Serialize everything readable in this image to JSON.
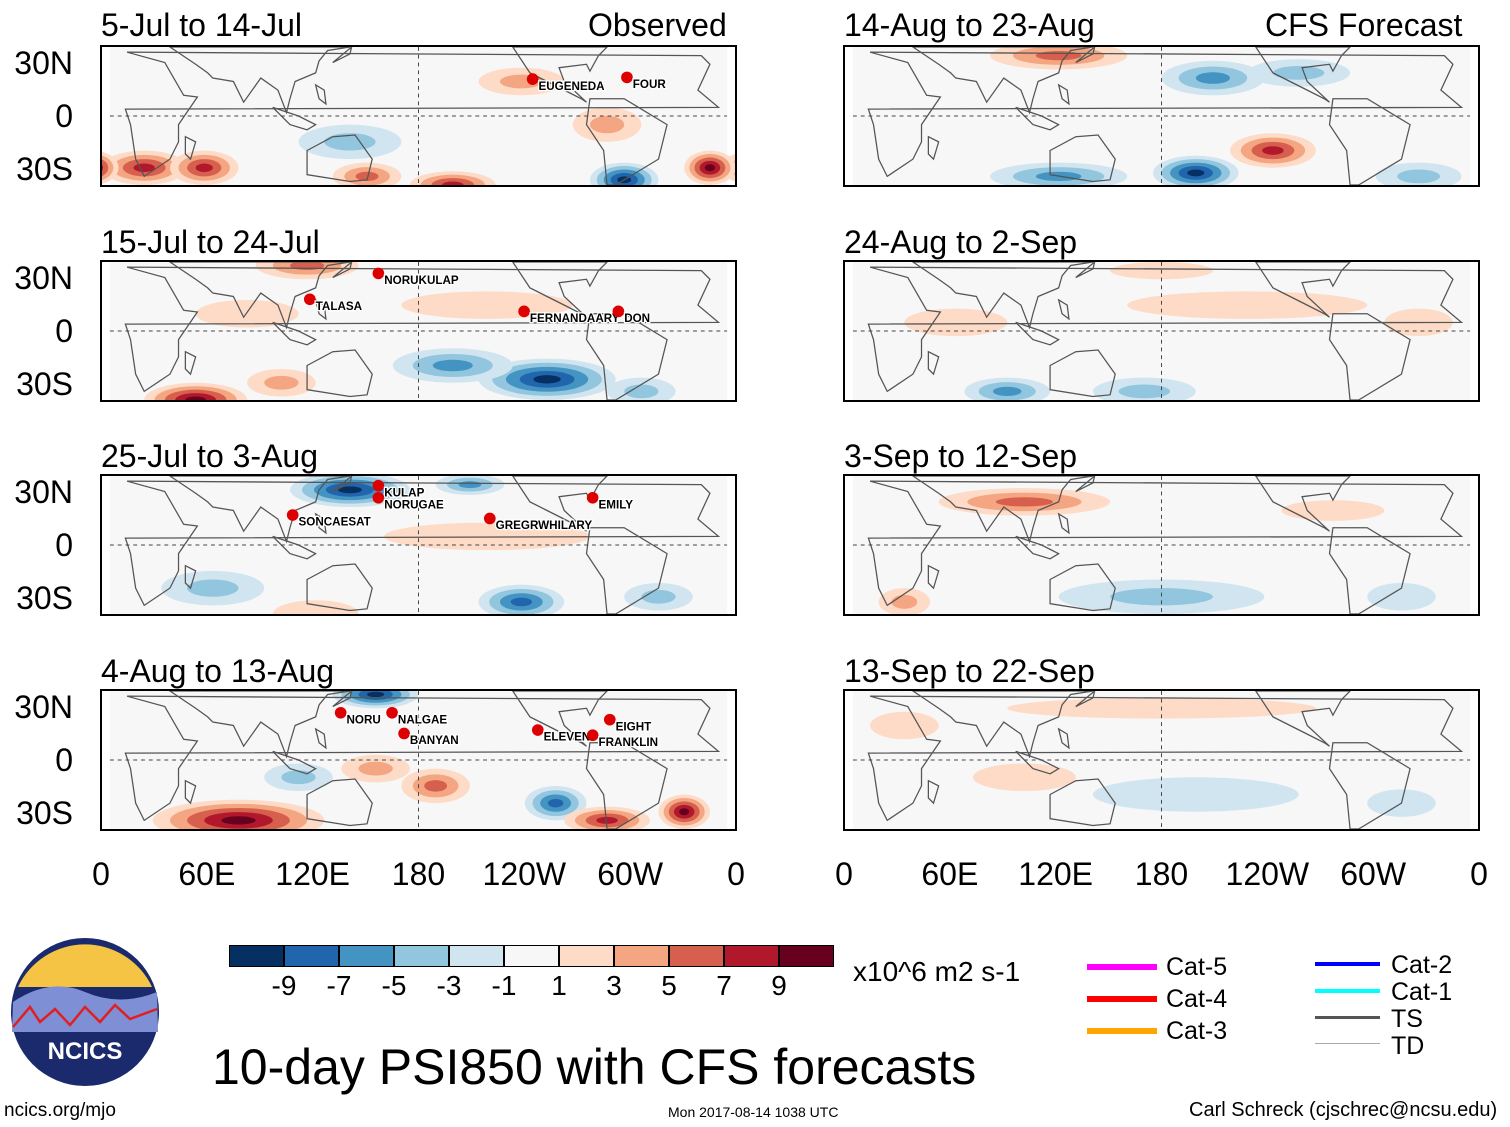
{
  "title": "10-day PSI850 with CFS forecasts",
  "observed_label": "Observed",
  "forecast_label": "CFS Forecast",
  "lat_labels": [
    "30N",
    "0",
    "30S"
  ],
  "lon_labels": [
    "0",
    "60E",
    "120E",
    "180",
    "120W",
    "60W",
    "0"
  ],
  "panels": [
    {
      "title": "5-Jul to 14-Jul",
      "storms": [
        "EUGENEDA",
        "FOUR"
      ]
    },
    {
      "title": "15-Jul to 24-Jul",
      "storms": [
        "TALASA",
        "NORUKULAP",
        "FERNANDAARY",
        "DON"
      ]
    },
    {
      "title": "25-Jul to 3-Aug",
      "storms": [
        "SONCAESAT",
        "KULAP",
        "NORUGAE",
        "GREGRWHILARY",
        "EMILY"
      ]
    },
    {
      "title": "4-Aug to 13-Aug",
      "storms": [
        "NORU",
        "NALGAE",
        "BANYAN",
        "ELEVEN",
        "FRANKLIN",
        "EIGHT"
      ]
    },
    {
      "title": "14-Aug to 23-Aug",
      "storms": []
    },
    {
      "title": "24-Aug to 2-Sep",
      "storms": []
    },
    {
      "title": "3-Sep to 12-Sep",
      "storms": []
    },
    {
      "title": "13-Sep to 22-Sep",
      "storms": []
    }
  ],
  "colorbar": {
    "ticks": [
      "-9",
      "-7",
      "-5",
      "-3",
      "-1",
      "1",
      "3",
      "5",
      "7",
      "9"
    ],
    "colors": [
      "#053061",
      "#2166ac",
      "#4393c3",
      "#92c5de",
      "#d1e5f0",
      "#f7f7f7",
      "#fddbc7",
      "#f4a582",
      "#d6604d",
      "#b2182b",
      "#67001f"
    ],
    "units": "x10^6 m2 s-1"
  },
  "legend": [
    {
      "label": "Cat-5",
      "color": "#ff00ff"
    },
    {
      "label": "Cat-4",
      "color": "#ff0000"
    },
    {
      "label": "Cat-3",
      "color": "#ffa500"
    },
    {
      "label": "Cat-2",
      "color": "#0000ff"
    },
    {
      "label": "Cat-1",
      "color": "#00ffff"
    },
    {
      "label": "TS",
      "color": "#555555"
    },
    {
      "label": "TD",
      "color": "#aaaaaa"
    }
  ],
  "logo_text": "NCICS",
  "footer": {
    "left": "ncics.org/mjo",
    "center": "Mon 2017-08-14 1038 UTC",
    "right": "Carl Schreck (cjschrec@ncsu.edu)"
  }
}
